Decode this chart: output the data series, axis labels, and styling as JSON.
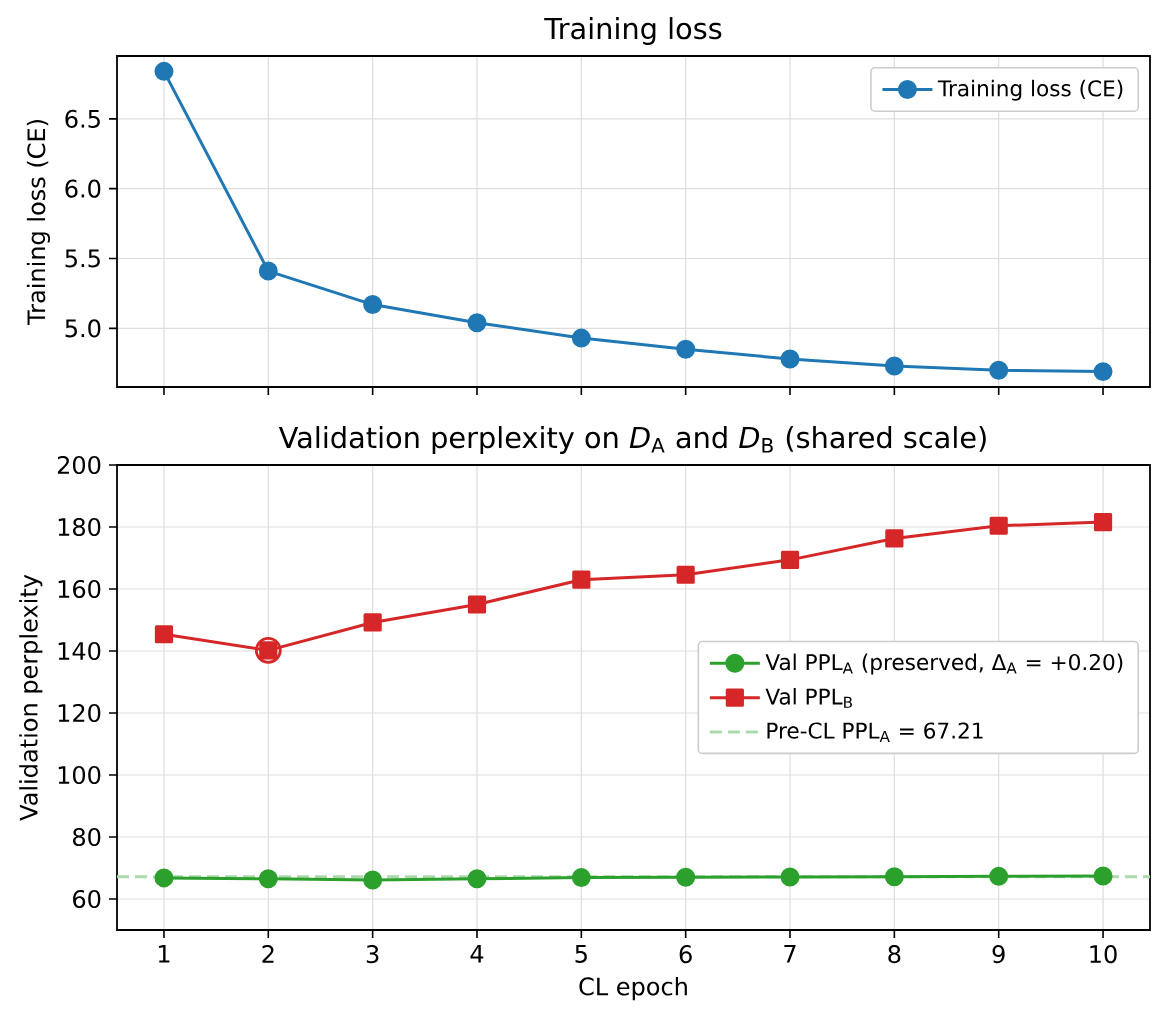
{
  "chart_data": [
    {
      "type": "line",
      "title": "Training loss",
      "ylabel": "Training loss (CE)",
      "x": [
        1,
        2,
        3,
        4,
        5,
        6,
        7,
        8,
        9,
        10
      ],
      "xlim": [
        0.55,
        10.45
      ],
      "xticks": [
        1,
        2,
        3,
        4,
        5,
        6,
        7,
        8,
        9,
        10
      ],
      "ylim": [
        4.58,
        6.95
      ],
      "yticks": [
        {
          "value": 5,
          "label": "5.0"
        },
        5.5,
        {
          "value": 6,
          "label": "6.0"
        },
        6.5
      ],
      "tick_labels": "y",
      "grid": true,
      "legend": "top right",
      "marker": "circle",
      "series": [
        {
          "name": "Training loss (CE)",
          "color": "#1f77b4",
          "values": [
            6.84,
            5.41,
            5.17,
            5.04,
            4.93,
            4.85,
            4.78,
            4.73,
            4.7,
            4.69
          ]
        }
      ]
    },
    {
      "type": "line",
      "title": "Validation perplexity on *D*$_{A}$ and *D*$_{B}$ (shared scale)",
      "xlabel": "CL epoch",
      "ylabel": "Validation perplexity",
      "x": [
        1,
        2,
        3,
        4,
        5,
        6,
        7,
        8,
        9,
        10
      ],
      "xlim": [
        0.55,
        10.45
      ],
      "xticks": [
        1,
        2,
        3,
        4,
        5,
        6,
        7,
        8,
        9,
        10
      ],
      "ylim": [
        50,
        200
      ],
      "yticks": [
        60,
        80,
        100,
        120,
        140,
        160,
        180,
        200
      ],
      "grid": true,
      "legend": "right",
      "series": [
        {
          "name": "Val PPL$_{A}$ (preserved, Δ$_{A}$ = +0.20)",
          "color": "#2ca02c",
          "marker": "circle",
          "values": [
            66.8,
            66.5,
            66.1,
            66.5,
            66.9,
            67.0,
            67.1,
            67.2,
            67.3,
            67.4
          ]
        },
        {
          "name": "Val PPL$_{B}$",
          "color": "#d62728",
          "marker": "square",
          "values": [
            145.4,
            140.2,
            149.2,
            155.0,
            163.0,
            164.6,
            169.4,
            176.3,
            180.4,
            181.6
          ]
        },
        {
          "type": "scatter",
          "color": "#d62728",
          "x": [
            2
          ],
          "values": [
            140.2
          ]
        }
      ],
      "ref_lines": [
        {
          "axis": "y",
          "value": 67.21,
          "label": "Pre-CL PPL$_{A}$ = 67.21",
          "color": "#abd9ab",
          "line_style": "dashed"
        }
      ]
    }
  ]
}
